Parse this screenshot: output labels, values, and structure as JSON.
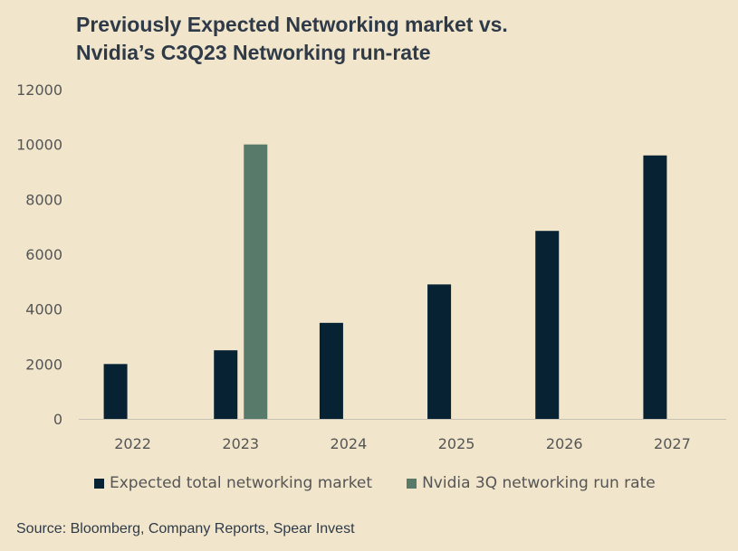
{
  "title_lines": [
    "Previously Expected Networking market vs.",
    "Nvidia’s C3Q23 Networking run-rate"
  ],
  "source": "Source: Bloomberg, Company Reports, Spear Invest",
  "colors": {
    "expected": "#072233",
    "nvidia": "#577a6a",
    "background": "#f1e6cc",
    "axis": "#c8c2b4"
  },
  "chart_data": {
    "type": "bar",
    "title": "Previously Expected Networking market vs. Nvidia’s C3Q23 Networking run-rate",
    "categories": [
      "2022",
      "2023",
      "2024",
      "2025",
      "2026",
      "2027"
    ],
    "series": [
      {
        "name": "Expected total networking market",
        "values": [
          2000,
          2500,
          3500,
          4900,
          6850,
          9600
        ]
      },
      {
        "name": "Nvidia 3Q networking run rate",
        "values": [
          null,
          10000,
          null,
          null,
          null,
          null
        ]
      }
    ],
    "ylim": [
      0,
      12000
    ],
    "yticks": [
      "0",
      "2000",
      "4000",
      "6000",
      "8000",
      "10000",
      "12000"
    ],
    "xlabel": "",
    "ylabel": "",
    "grid": false,
    "legend": "bottom"
  }
}
